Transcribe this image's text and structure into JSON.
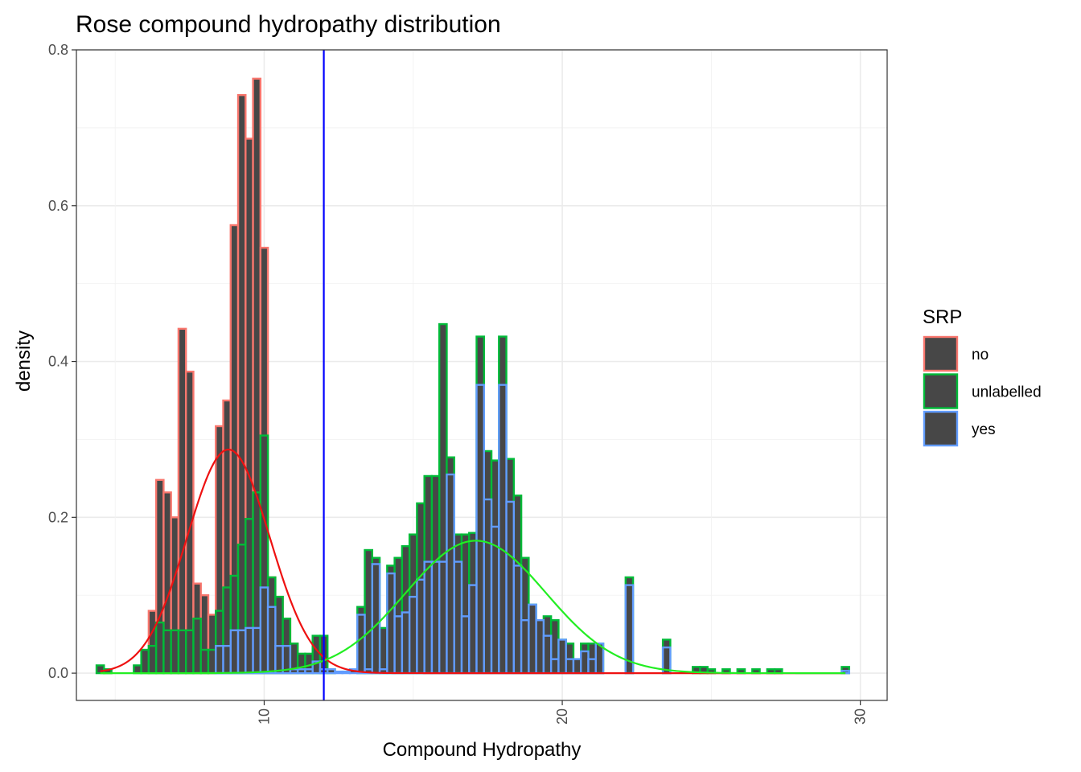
{
  "chart_data": {
    "type": "histogram",
    "title": "Rose compound hydropathy distribution",
    "xlabel": "Compound Hydropathy",
    "ylabel": "density",
    "xlim": [
      3.7,
      30.9
    ],
    "ylim": [
      -0.035,
      0.8
    ],
    "x_ticks": [
      10,
      20,
      30
    ],
    "y_ticks": [
      0.0,
      0.2,
      0.4,
      0.6,
      0.8
    ],
    "x_tick_labels": [
      "10",
      "20",
      "30"
    ],
    "y_tick_labels": [
      "0.0",
      "0.2",
      "0.4",
      "0.6",
      "0.8"
    ],
    "grid": true,
    "bin_width": 0.25,
    "vline": {
      "x": 12.0,
      "color": "#0000ff"
    },
    "legend": {
      "title": "SRP",
      "position": "right",
      "fill": "#474747",
      "entries": [
        {
          "label": "no",
          "color": "#f8766d"
        },
        {
          "label": "unlabelled",
          "color": "#00ba38"
        },
        {
          "label": "yes",
          "color": "#619cff"
        }
      ]
    },
    "series": [
      {
        "name": "no",
        "color": "#f8766d",
        "bins": [
          [
            4.75,
            0.005
          ],
          [
            6.25,
            0.08
          ],
          [
            6.5,
            0.248
          ],
          [
            6.75,
            0.232
          ],
          [
            7.0,
            0.2
          ],
          [
            7.25,
            0.442
          ],
          [
            7.5,
            0.387
          ],
          [
            7.75,
            0.115
          ],
          [
            8.0,
            0.1
          ],
          [
            8.25,
            0.075
          ],
          [
            8.5,
            0.317
          ],
          [
            8.75,
            0.35
          ],
          [
            9.0,
            0.575
          ],
          [
            9.25,
            0.742
          ],
          [
            9.5,
            0.686
          ],
          [
            9.75,
            0.763
          ],
          [
            10.0,
            0.546
          ],
          [
            10.25,
            0.123
          ],
          [
            10.5,
            0.098
          ],
          [
            10.75,
            0.07
          ],
          [
            11.0,
            0.038
          ]
        ]
      },
      {
        "name": "unlabelled",
        "color": "#00ba38",
        "bins": [
          [
            4.5,
            0.01
          ],
          [
            4.75,
            0.005
          ],
          [
            5.75,
            0.01
          ],
          [
            6.0,
            0.03
          ],
          [
            6.25,
            0.035
          ],
          [
            6.5,
            0.065
          ],
          [
            6.75,
            0.055
          ],
          [
            7.0,
            0.055
          ],
          [
            7.25,
            0.055
          ],
          [
            7.5,
            0.055
          ],
          [
            7.75,
            0.07
          ],
          [
            8.0,
            0.03
          ],
          [
            8.25,
            0.03
          ],
          [
            8.5,
            0.08
          ],
          [
            8.75,
            0.11
          ],
          [
            9.0,
            0.125
          ],
          [
            9.25,
            0.165
          ],
          [
            9.5,
            0.198
          ],
          [
            9.75,
            0.232
          ],
          [
            10.0,
            0.305
          ],
          [
            10.25,
            0.123
          ],
          [
            10.5,
            0.098
          ],
          [
            10.75,
            0.07
          ],
          [
            11.0,
            0.038
          ],
          [
            11.25,
            0.025
          ],
          [
            11.5,
            0.025
          ],
          [
            11.75,
            0.048
          ],
          [
            12.0,
            0.048
          ],
          [
            12.25,
            0.005
          ],
          [
            13.25,
            0.085
          ],
          [
            13.5,
            0.158
          ],
          [
            13.75,
            0.148
          ],
          [
            14.0,
            0.058
          ],
          [
            14.25,
            0.138
          ],
          [
            14.5,
            0.148
          ],
          [
            14.75,
            0.163
          ],
          [
            15.0,
            0.178
          ],
          [
            15.25,
            0.218
          ],
          [
            15.5,
            0.253
          ],
          [
            15.75,
            0.253
          ],
          [
            16.0,
            0.448
          ],
          [
            16.25,
            0.277
          ],
          [
            16.5,
            0.178
          ],
          [
            16.75,
            0.178
          ],
          [
            17.0,
            0.18
          ],
          [
            17.25,
            0.432
          ],
          [
            17.5,
            0.285
          ],
          [
            17.75,
            0.273
          ],
          [
            18.0,
            0.432
          ],
          [
            18.25,
            0.275
          ],
          [
            18.5,
            0.228
          ],
          [
            18.75,
            0.148
          ],
          [
            19.0,
            0.088
          ],
          [
            19.25,
            0.068
          ],
          [
            19.5,
            0.073
          ],
          [
            19.75,
            0.068
          ],
          [
            20.0,
            0.043
          ],
          [
            20.25,
            0.038
          ],
          [
            20.5,
            0.018
          ],
          [
            20.75,
            0.038
          ],
          [
            21.0,
            0.038
          ],
          [
            21.25,
            0.038
          ],
          [
            22.25,
            0.123
          ],
          [
            23.5,
            0.043
          ],
          [
            24.5,
            0.008
          ],
          [
            24.75,
            0.008
          ],
          [
            25.0,
            0.005
          ],
          [
            25.5,
            0.005
          ],
          [
            26.0,
            0.005
          ],
          [
            26.5,
            0.005
          ],
          [
            27.0,
            0.005
          ],
          [
            27.25,
            0.005
          ],
          [
            29.5,
            0.008
          ]
        ]
      },
      {
        "name": "yes",
        "color": "#619cff",
        "bins": [
          [
            8.5,
            0.035
          ],
          [
            8.75,
            0.035
          ],
          [
            9.0,
            0.055
          ],
          [
            9.25,
            0.055
          ],
          [
            9.5,
            0.058
          ],
          [
            9.75,
            0.058
          ],
          [
            10.0,
            0.11
          ],
          [
            10.25,
            0.085
          ],
          [
            10.5,
            0.035
          ],
          [
            10.75,
            0.035
          ],
          [
            11.0,
            0.005
          ],
          [
            11.25,
            0.005
          ],
          [
            11.5,
            0.005
          ],
          [
            11.75,
            0.015
          ],
          [
            12.0,
            0.005
          ],
          [
            12.25,
            0.005
          ],
          [
            12.5,
            0.002
          ],
          [
            12.75,
            0.002
          ],
          [
            13.0,
            0.005
          ],
          [
            13.25,
            0.075
          ],
          [
            13.5,
            0.005
          ],
          [
            13.75,
            0.14
          ],
          [
            14.0,
            0.005
          ],
          [
            14.25,
            0.128
          ],
          [
            14.5,
            0.073
          ],
          [
            14.75,
            0.078
          ],
          [
            15.0,
            0.098
          ],
          [
            15.25,
            0.12
          ],
          [
            15.5,
            0.143
          ],
          [
            15.75,
            0.143
          ],
          [
            16.0,
            0.143
          ],
          [
            16.25,
            0.255
          ],
          [
            16.5,
            0.143
          ],
          [
            16.75,
            0.073
          ],
          [
            17.0,
            0.113
          ],
          [
            17.25,
            0.37
          ],
          [
            17.5,
            0.223
          ],
          [
            17.75,
            0.188
          ],
          [
            18.0,
            0.37
          ],
          [
            18.25,
            0.22
          ],
          [
            18.5,
            0.138
          ],
          [
            18.75,
            0.068
          ],
          [
            19.0,
            0.088
          ],
          [
            19.25,
            0.068
          ],
          [
            19.5,
            0.048
          ],
          [
            19.75,
            0.018
          ],
          [
            20.0,
            0.043
          ],
          [
            20.25,
            0.018
          ],
          [
            20.5,
            0.018
          ],
          [
            20.75,
            0.028
          ],
          [
            21.0,
            0.018
          ],
          [
            21.25,
            0.038
          ],
          [
            22.25,
            0.113
          ],
          [
            23.5,
            0.033
          ],
          [
            29.5,
            0.003
          ]
        ]
      }
    ],
    "curves": [
      {
        "name": "no-normal-fit",
        "color": "#ee1111",
        "mean": 8.8,
        "sd": 1.39,
        "peak": 0.287
      },
      {
        "name": "unlabelled-normal-fit",
        "color": "#22ee22",
        "mean": 17.1,
        "sd": 2.35,
        "peak": 0.17
      }
    ]
  }
}
